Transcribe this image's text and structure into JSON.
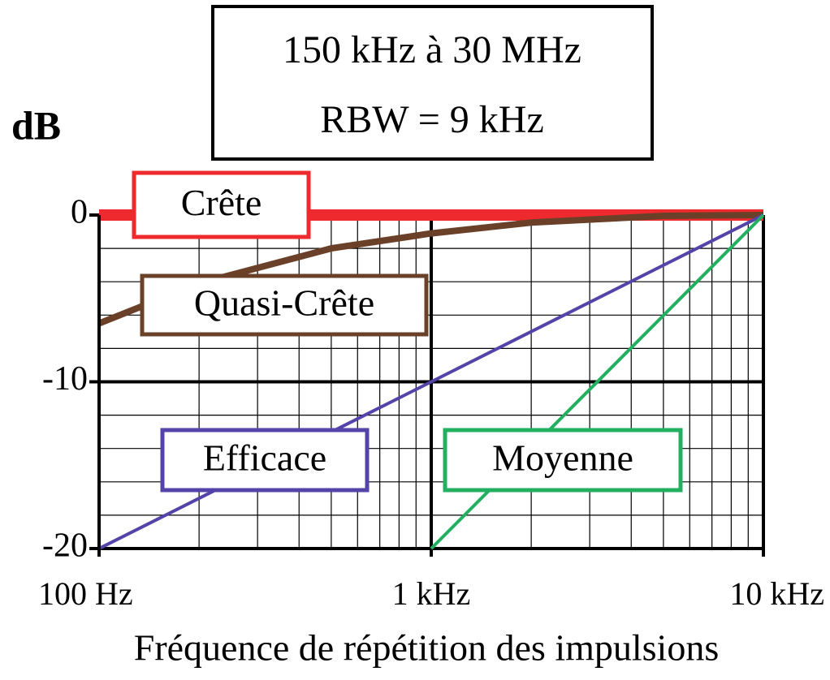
{
  "chart_data": {
    "type": "line",
    "title": [
      "150 kHz à 30 MHz",
      "RBW = 9 kHz"
    ],
    "y_label": "dB",
    "x_label": "Fréquence de répétition des impulsions",
    "xscale": "log",
    "xlim": [
      100,
      10000
    ],
    "ylim": [
      -20,
      0
    ],
    "xticks": [
      {
        "value": 100,
        "label": "100 Hz"
      },
      {
        "value": 1000,
        "label": "1 kHz"
      },
      {
        "value": 10000,
        "label": "10 kHz"
      }
    ],
    "yticks": [
      0,
      -10,
      -20
    ],
    "xminorticks": [
      200,
      300,
      400,
      500,
      600,
      700,
      800,
      900,
      2000,
      3000,
      4000,
      5000,
      6000,
      7000,
      8000,
      9000
    ],
    "yminorticks": [
      -2,
      -4,
      -6,
      -8,
      -12,
      -14,
      -16,
      -18
    ],
    "grid": true,
    "series": [
      {
        "name": "Crête",
        "color": "#ee2a2e",
        "x": [
          100,
          10000
        ],
        "values": [
          0,
          0
        ]
      },
      {
        "name": "Quasi-Crête",
        "color": "#6b4029",
        "x": [
          100,
          200,
          500,
          1000,
          2000,
          5000,
          10000
        ],
        "values": [
          -6.5,
          -4.1,
          -2,
          -1.1,
          -0.45,
          -0.05,
          0
        ]
      },
      {
        "name": "Efficace",
        "color": "#5443a8",
        "x": [
          100,
          1000,
          10000
        ],
        "values": [
          -20,
          -10,
          0
        ]
      },
      {
        "name": "Moyenne",
        "color": "#22b060",
        "x": [
          1000,
          10000
        ],
        "values": [
          -20,
          0
        ]
      }
    ]
  }
}
